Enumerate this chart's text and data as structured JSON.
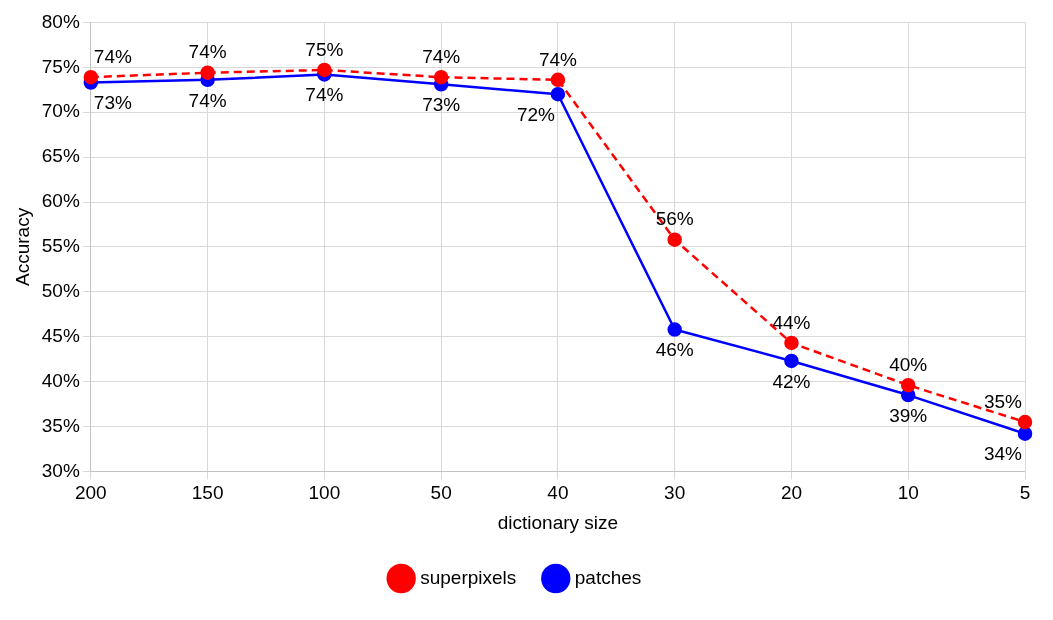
{
  "chart_data": {
    "type": "line",
    "xlabel": "dictionary size",
    "ylabel": "Accuracy",
    "categories": [
      "200",
      "150",
      "100",
      "50",
      "40",
      "30",
      "20",
      "10",
      "5"
    ],
    "series": [
      {
        "name": "superpixels",
        "color": "#ff0000",
        "line_style": "dashed",
        "values": [
          73.9,
          74.4,
          74.7,
          73.9,
          73.6,
          55.8,
          44.3,
          39.6,
          35.5
        ],
        "value_labels": [
          "74%",
          "74%",
          "75%",
          "74%",
          "74%",
          "56%",
          "44%",
          "40%",
          "35%"
        ]
      },
      {
        "name": "patches",
        "color": "#0000ff",
        "line_style": "solid",
        "values": [
          73.3,
          73.6,
          74.2,
          73.1,
          72.0,
          45.8,
          42.3,
          38.5,
          34.2
        ],
        "value_labels": [
          "73%",
          "74%",
          "74%",
          "73%",
          "72%",
          "46%",
          "42%",
          "39%",
          "34%"
        ]
      }
    ],
    "ylim": [
      30,
      80
    ],
    "yticks": [
      {
        "value": 30,
        "label": "30%"
      },
      {
        "value": 35,
        "label": "35%"
      },
      {
        "value": 40,
        "label": "40%"
      },
      {
        "value": 45,
        "label": "45%"
      },
      {
        "value": 50,
        "label": "50%"
      },
      {
        "value": 55,
        "label": "55%"
      },
      {
        "value": 60,
        "label": "60%"
      },
      {
        "value": 65,
        "label": "65%"
      },
      {
        "value": 70,
        "label": "70%"
      },
      {
        "value": 75,
        "label": "75%"
      },
      {
        "value": 80,
        "label": "80%"
      }
    ],
    "grid": true,
    "legend": "bottom",
    "marker": "circle"
  }
}
